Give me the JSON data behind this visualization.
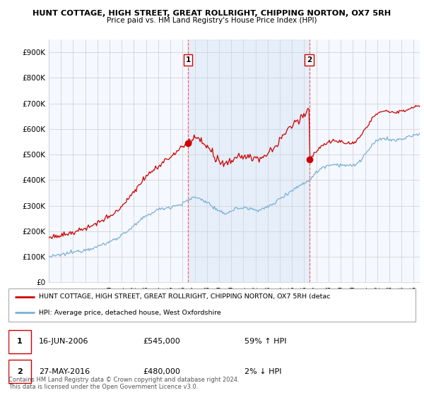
{
  "title1": "HUNT COTTAGE, HIGH STREET, GREAT ROLLRIGHT, CHIPPING NORTON, OX7 5RH",
  "title2": "Price paid vs. HM Land Registry's House Price Index (HPI)",
  "ylabel_ticks": [
    "£0",
    "£100K",
    "£200K",
    "£300K",
    "£400K",
    "£500K",
    "£600K",
    "£700K",
    "£800K",
    "£900K"
  ],
  "ytick_vals": [
    0,
    100000,
    200000,
    300000,
    400000,
    500000,
    600000,
    700000,
    800000,
    900000
  ],
  "ylim": [
    0,
    950000
  ],
  "xlim_start": 1995.0,
  "xlim_end": 2025.5,
  "legend_line1": "HUNT COTTAGE, HIGH STREET, GREAT ROLLRIGHT, CHIPPING NORTON, OX7 5RH (detac",
  "legend_line2": "HPI: Average price, detached house, West Oxfordshire",
  "sale1_x": 2006.46,
  "sale1_y": 545000,
  "sale1_label": "1",
  "sale2_x": 2016.41,
  "sale2_y": 480000,
  "sale2_label": "2",
  "copyright_text": "Contains HM Land Registry data © Crown copyright and database right 2024.\nThis data is licensed under the Open Government Licence v3.0.",
  "red_line_color": "#cc0000",
  "blue_line_color": "#7ab0d4",
  "shade_color": "#ddeeff",
  "background_color": "#ffffff",
  "grid_color": "#cccccc",
  "dashed_line_color": "#ff5555",
  "chart_bg": "#f5f8ff"
}
